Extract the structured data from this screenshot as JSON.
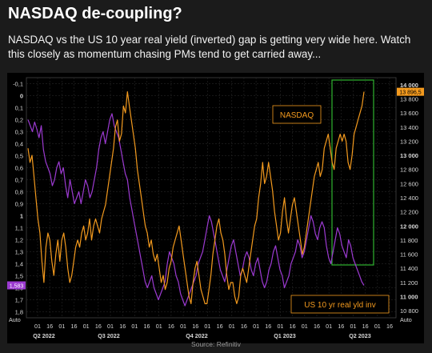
{
  "title": "NASDAQ de-coupling?",
  "subtitle": "NASDAQ vs the US 10 year real yield (inverted) gap is getting very wide here. Watch this closely as momentum chasing PMs tend to get carried away...",
  "source": "Source: Refinitiv",
  "chart_data": {
    "type": "line",
    "x_axis": {
      "ticks": [
        "01",
        "16",
        "01",
        "16",
        "01",
        "16",
        "01",
        "16",
        "01",
        "16",
        "01",
        "16",
        "01",
        "16",
        "01",
        "16",
        "01",
        "16",
        "01",
        "16",
        "01",
        "16",
        "01",
        "16",
        "01",
        "16",
        "01",
        "16",
        "01",
        "16"
      ],
      "periods": [
        "Q2 2022",
        "Q3 2022",
        "Q4 2022",
        "Q1 2023",
        "Q2 2023"
      ],
      "corner_labels": [
        "Auto",
        "Auto"
      ]
    },
    "left_axis": {
      "ticks": [
        "-0,1",
        "0",
        "0,1",
        "0,2",
        "0,3",
        "0,4",
        "0,5",
        "0,6",
        "0,7",
        "0,8",
        "0,9",
        "1",
        "1,1",
        "1,2",
        "1,3",
        "1,4",
        "1,5",
        "1,6",
        "1,7",
        "1,8"
      ],
      "range": [
        -0.15,
        1.85
      ],
      "inverted": true,
      "current_value": "1,583"
    },
    "right_axis": {
      "ticks": [
        "14 000",
        "13 800",
        "13 600",
        "13 400",
        "13 200",
        "13 000",
        "12 800",
        "12 600",
        "12 400",
        "12 200",
        "12 000",
        "11 800",
        "11 600",
        "11 400",
        "11 200",
        "11 000",
        "10 800"
      ],
      "range": [
        10700,
        14100
      ],
      "current_value": "13 896,5"
    },
    "series": [
      {
        "name": "NASDAQ",
        "axis": "right",
        "color": "#f39a1e",
        "values": [
          13100,
          12900,
          13000,
          12700,
          12400,
          12100,
          11900,
          11500,
          11200,
          11700,
          11900,
          11800,
          11500,
          11300,
          11600,
          11800,
          11500,
          11800,
          11900,
          11700,
          11400,
          11200,
          11300,
          11500,
          11700,
          11800,
          11700,
          11900,
          12000,
          11800,
          11900,
          12100,
          11800,
          12000,
          12100,
          12000,
          11900,
          12100,
          12200,
          12300,
          12500,
          12700,
          12900,
          13100,
          13400,
          13500,
          13200,
          13300,
          13700,
          13600,
          13900,
          13700,
          13500,
          13300,
          13100,
          12800,
          12600,
          12400,
          12200,
          12000,
          11900,
          11700,
          11800,
          11600,
          11500,
          11600,
          11400,
          11200,
          11300,
          11100,
          11200,
          11400,
          11500,
          11700,
          11800,
          11900,
          12000,
          11800,
          11600,
          11400,
          11200,
          11000,
          10900,
          11200,
          11400,
          11500,
          11300,
          11100,
          11000,
          10900,
          10900,
          11100,
          11300,
          11600,
          11800,
          12000,
          12100,
          11900,
          11800,
          11600,
          11300,
          11100,
          11200,
          11200,
          11000,
          10900,
          11000,
          11300,
          11400,
          11300,
          11200,
          11400,
          11600,
          11800,
          12000,
          12100,
          12400,
          12600,
          12900,
          12600,
          12700,
          12900,
          12700,
          12500,
          12200,
          12000,
          11800,
          11900,
          12200,
          12400,
          12100,
          11900,
          12100,
          12300,
          12400,
          12200,
          12000,
          11800,
          11600,
          11700,
          11900,
          12100,
          12300,
          12500,
          12700,
          12800,
          12900,
          12700,
          12800,
          13100,
          13200,
          13300,
          13100,
          12900,
          12800,
          13100,
          13200,
          13300,
          13200,
          13300,
          13200,
          12900,
          12800,
          13000,
          13300,
          13400,
          13500,
          13600,
          13700,
          13900
        ]
      },
      {
        "name": "US 10 yr real yld inv",
        "axis": "left",
        "color": "#9b3ad0",
        "values": [
          0.2,
          0.25,
          0.3,
          0.22,
          0.28,
          0.35,
          0.25,
          0.45,
          0.55,
          0.6,
          0.65,
          0.75,
          0.7,
          0.6,
          0.55,
          0.65,
          0.6,
          0.75,
          0.85,
          0.7,
          0.8,
          0.9,
          0.85,
          0.8,
          0.9,
          0.8,
          0.7,
          0.75,
          0.85,
          0.8,
          0.7,
          0.6,
          0.45,
          0.35,
          0.3,
          0.4,
          0.3,
          0.2,
          0.15,
          0.25,
          0.3,
          0.35,
          0.45,
          0.55,
          0.65,
          0.7,
          0.85,
          0.95,
          1.05,
          1.15,
          1.25,
          1.35,
          1.45,
          1.55,
          1.6,
          1.55,
          1.5,
          1.6,
          1.65,
          1.7,
          1.65,
          1.6,
          1.55,
          1.4,
          1.3,
          1.35,
          1.4,
          1.5,
          1.55,
          1.65,
          1.7,
          1.75,
          1.7,
          1.65,
          1.6,
          1.55,
          1.5,
          1.4,
          1.35,
          1.3,
          1.2,
          1.1,
          1.0,
          1.05,
          1.15,
          1.25,
          1.35,
          1.45,
          1.5,
          1.55,
          1.45,
          1.35,
          1.25,
          1.2,
          1.3,
          1.4,
          1.5,
          1.45,
          1.35,
          1.3,
          1.35,
          1.45,
          1.5,
          1.4,
          1.35,
          1.45,
          1.55,
          1.6,
          1.55,
          1.45,
          1.4,
          1.3,
          1.25,
          1.35,
          1.45,
          1.5,
          1.6,
          1.55,
          1.5,
          1.4,
          1.35,
          1.3,
          1.2,
          1.25,
          1.35,
          1.3,
          1.2,
          1.1,
          1.0,
          1.05,
          1.15,
          1.2,
          1.1,
          1.05,
          1.1,
          1.25,
          1.35,
          1.4,
          1.3,
          1.2,
          1.1,
          1.15,
          1.25,
          1.3,
          1.35,
          1.2,
          1.25,
          1.35,
          1.4,
          1.45,
          1.5,
          1.55,
          1.58
        ]
      }
    ],
    "annotations": [
      {
        "text": "NASDAQ",
        "color": "#f39a1e"
      },
      {
        "text": "US 10 yr real yld inv",
        "color": "#f39a1e"
      }
    ],
    "highlight_box_color": "#2fb52f",
    "grid": true
  }
}
